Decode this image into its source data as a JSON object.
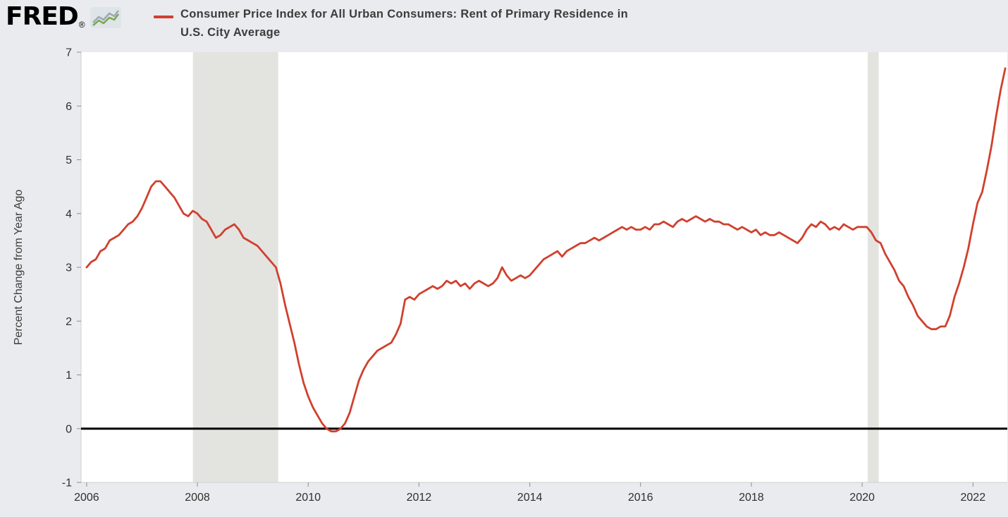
{
  "header": {
    "logo_text": "FRED",
    "logo_registered": "®",
    "series_title_line1": "Consumer Price Index for All Urban Consumers: Rent of Primary Residence in",
    "series_title_line2": "U.S. City Average"
  },
  "chart_data": {
    "type": "line",
    "title": "Consumer Price Index for All Urban Consumers: Rent of Primary Residence in U.S. City Average",
    "ylabel": "Percent Change from Year Ago",
    "xlabel": "",
    "legend_entries": [
      "Consumer Price Index for All Urban Consumers: Rent of Primary Residence in U.S. City Average"
    ],
    "frequency": "monthly",
    "x_start_year": 2006,
    "x_start_month": 1,
    "values": [
      3.0,
      3.1,
      3.15,
      3.3,
      3.35,
      3.5,
      3.55,
      3.6,
      3.7,
      3.8,
      3.85,
      3.95,
      4.1,
      4.3,
      4.5,
      4.6,
      4.6,
      4.5,
      4.4,
      4.3,
      4.15,
      4.0,
      3.95,
      4.05,
      4.0,
      3.9,
      3.85,
      3.7,
      3.55,
      3.6,
      3.7,
      3.75,
      3.8,
      3.7,
      3.55,
      3.5,
      3.45,
      3.4,
      3.3,
      3.2,
      3.1,
      3.0,
      2.7,
      2.3,
      1.95,
      1.6,
      1.2,
      0.85,
      0.6,
      0.4,
      0.25,
      0.1,
      0.0,
      -0.05,
      -0.05,
      0.0,
      0.1,
      0.3,
      0.6,
      0.9,
      1.1,
      1.25,
      1.35,
      1.45,
      1.5,
      1.55,
      1.6,
      1.75,
      1.95,
      2.4,
      2.45,
      2.4,
      2.5,
      2.55,
      2.6,
      2.65,
      2.6,
      2.65,
      2.75,
      2.7,
      2.75,
      2.65,
      2.7,
      2.6,
      2.7,
      2.75,
      2.7,
      2.65,
      2.7,
      2.8,
      3.0,
      2.85,
      2.75,
      2.8,
      2.85,
      2.8,
      2.85,
      2.95,
      3.05,
      3.15,
      3.2,
      3.25,
      3.3,
      3.2,
      3.3,
      3.35,
      3.4,
      3.45,
      3.45,
      3.5,
      3.55,
      3.5,
      3.55,
      3.6,
      3.65,
      3.7,
      3.75,
      3.7,
      3.75,
      3.7,
      3.7,
      3.75,
      3.7,
      3.8,
      3.8,
      3.85,
      3.8,
      3.75,
      3.85,
      3.9,
      3.85,
      3.9,
      3.95,
      3.9,
      3.85,
      3.9,
      3.85,
      3.85,
      3.8,
      3.8,
      3.75,
      3.7,
      3.75,
      3.7,
      3.65,
      3.7,
      3.6,
      3.65,
      3.6,
      3.6,
      3.65,
      3.6,
      3.55,
      3.5,
      3.45,
      3.55,
      3.7,
      3.8,
      3.75,
      3.85,
      3.8,
      3.7,
      3.75,
      3.7,
      3.8,
      3.75,
      3.7,
      3.75,
      3.75,
      3.75,
      3.65,
      3.5,
      3.45,
      3.25,
      3.1,
      2.95,
      2.75,
      2.65,
      2.45,
      2.3,
      2.1,
      2.0,
      1.9,
      1.85,
      1.85,
      1.9,
      1.9,
      2.1,
      2.45,
      2.7,
      3.0,
      3.35,
      3.8,
      4.2,
      4.4,
      4.8,
      5.25,
      5.8,
      6.3,
      6.7
    ],
    "ylim": [
      -1,
      7
    ],
    "xlim": [
      2005.9,
      2022.62
    ],
    "y_ticks": [
      7,
      6,
      5,
      4,
      3,
      2,
      1,
      0,
      -1
    ],
    "x_ticks": [
      2006,
      2008,
      2010,
      2012,
      2014,
      2016,
      2018,
      2020,
      2022
    ],
    "recession_bands": [
      {
        "start": 2007.92,
        "end": 2009.46
      },
      {
        "start": 2020.1,
        "end": 2020.3
      }
    ],
    "grid": false,
    "legend_position": "top",
    "line_color": "#d0402e",
    "zero_line_color": "#000000",
    "recession_color": "#e3e3e0",
    "plot_bg": "#ffffff",
    "page_bg": "#e9ebee",
    "tick_color": "#8c8c8c",
    "axis_line_color": "#cfcfcf"
  }
}
